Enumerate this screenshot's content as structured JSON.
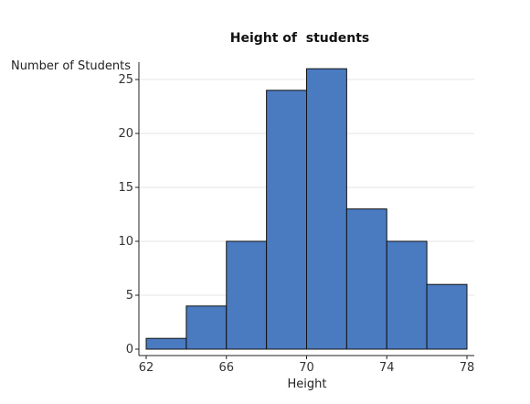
{
  "chart_data": {
    "type": "bar",
    "title": "Height of  students",
    "xlabel": "Height",
    "ylabel": "Number of Students",
    "bin_edges": [
      62,
      64,
      66,
      68,
      70,
      72,
      74,
      76,
      78
    ],
    "values": [
      1,
      4,
      10,
      24,
      26,
      13,
      10,
      6
    ],
    "xlim": [
      62,
      78
    ],
    "ylim": [
      0,
      26
    ],
    "x_ticks": [
      62,
      66,
      70,
      74,
      78
    ],
    "y_ticks": [
      0,
      5,
      10,
      15,
      20,
      25
    ],
    "grid": "horizontal",
    "legend": "none",
    "colors": {
      "bar_fill": "#4a7bc1",
      "bar_stroke": "#111111",
      "grid": "#e6e6e6",
      "axis": "#222222"
    }
  }
}
